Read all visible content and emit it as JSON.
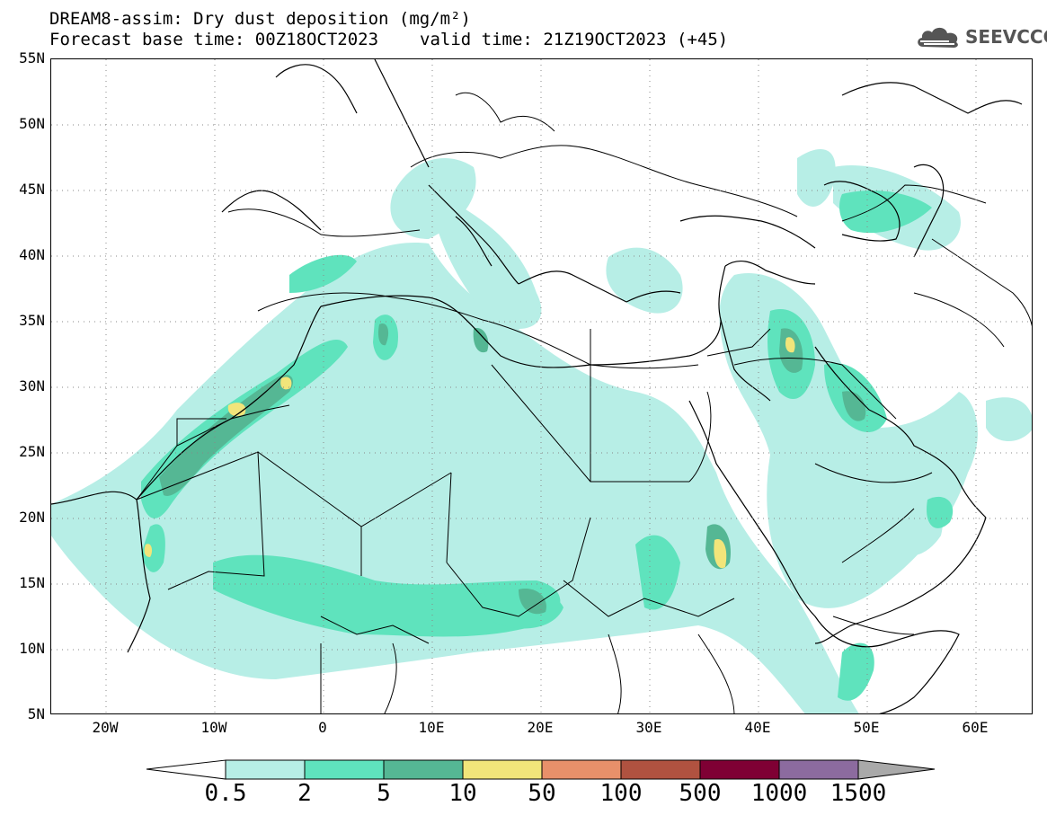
{
  "header": {
    "title": "DREAM8-assim: Dry dust deposition (mg/m²)",
    "base_time": "Forecast base time: 00Z18OCT2023",
    "valid_time": "valid time: 21Z19OCT2023 (+45)"
  },
  "logo": {
    "text": "SEEVCCC",
    "icon": "cloud-icon",
    "color": "#555555"
  },
  "map": {
    "lat_labels": [
      "55N",
      "50N",
      "45N",
      "40N",
      "35N",
      "30N",
      "25N",
      "20N",
      "15N",
      "10N",
      "5N"
    ],
    "lon_labels": [
      "20W",
      "10W",
      "0",
      "10E",
      "20E",
      "30E",
      "40E",
      "50E",
      "60E"
    ],
    "dust_colors": [
      "#b7eee6",
      "#5fe3bd",
      "#55b794",
      "#f2e57a"
    ]
  },
  "colorbar": {
    "labels": [
      "0.5",
      "2",
      "5",
      "10",
      "50",
      "100",
      "500",
      "1000",
      "1500"
    ],
    "colors": [
      "#ffffff",
      "#b7eee6",
      "#5fe3bd",
      "#55b794",
      "#f2e57a",
      "#e8906a",
      "#b05240",
      "#7f0034",
      "#8c6b9f",
      "#a9a9a9"
    ]
  }
}
